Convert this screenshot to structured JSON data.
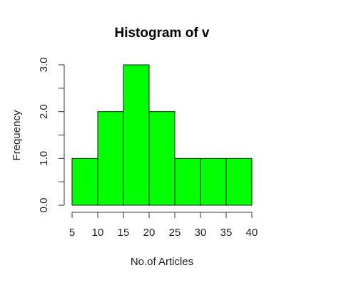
{
  "chart_data": {
    "type": "bar",
    "title": "Histogram of v",
    "xlabel": "No.of Articles",
    "ylabel": "Frequency",
    "bins": [
      {
        "start": 5,
        "end": 10,
        "count": 1
      },
      {
        "start": 10,
        "end": 15,
        "count": 2
      },
      {
        "start": 15,
        "end": 20,
        "count": 3
      },
      {
        "start": 20,
        "end": 25,
        "count": 2
      },
      {
        "start": 25,
        "end": 30,
        "count": 1
      },
      {
        "start": 30,
        "end": 35,
        "count": 1
      },
      {
        "start": 35,
        "end": 40,
        "count": 1
      }
    ],
    "x_ticks": [
      "5",
      "10",
      "15",
      "20",
      "25",
      "30",
      "35",
      "40"
    ],
    "y_ticks": [
      "0.0",
      "1.0",
      "2.0",
      "3.0"
    ],
    "xlim": [
      5,
      40
    ],
    "ylim": [
      0,
      3
    ],
    "grid": false,
    "bar_color": "#00ff00"
  }
}
